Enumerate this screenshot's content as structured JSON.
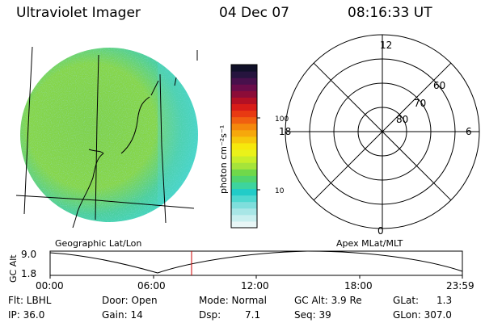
{
  "header": {
    "instrument": "Ultraviolet Imager",
    "date": "04 Dec 07",
    "time": "08:16:33 UT"
  },
  "geographic_label": "Geographic Lat/Lon",
  "apex_label": "Apex MLat/MLT",
  "colorbar": {
    "unit_label": "photon cm⁻²s⁻¹",
    "tick_labels": [
      "100",
      "10"
    ],
    "colors": [
      "#e8f6f6",
      "#c9efef",
      "#a8e6e6",
      "#7fdedc",
      "#4fd8d0",
      "#22ccc8",
      "#3dd49e",
      "#50d46e",
      "#70d84a",
      "#a6e43a",
      "#c8ee2a",
      "#eaf21a",
      "#f6e80c",
      "#f6c80c",
      "#f6a80c",
      "#f4880c",
      "#f06010",
      "#e83a12",
      "#d81c18",
      "#b41024",
      "#8c0c38",
      "#6a0c4a",
      "#48104c",
      "#26143e",
      "#101028"
    ]
  },
  "polar_plot": {
    "mlt_labels": [
      "12",
      "18",
      "6",
      "0"
    ],
    "mlat_labels": [
      "60",
      "70",
      "80"
    ]
  },
  "timeline": {
    "y_axis_label": "GC Alt",
    "y_max_label": "9.0",
    "y_min_label": "1.8",
    "x_labels": [
      "00:00",
      "06:00",
      "12:00",
      "18:00",
      "23:59"
    ],
    "marker_color": "#cc0000"
  },
  "info": {
    "flt": "Flt: LBHL",
    "ip": "IP: 36.0",
    "door": "Door: Open",
    "gain": "Gain: 14",
    "mode": "Mode: Normal",
    "dsp_label": "Dsp:",
    "dsp_value": "7.1",
    "gc_alt": "GC Alt: 3.9 Re",
    "seq": "Seq: 39",
    "glat_label": "GLat:",
    "glat_value": "1.3",
    "glon": "GLon: 307.0"
  }
}
